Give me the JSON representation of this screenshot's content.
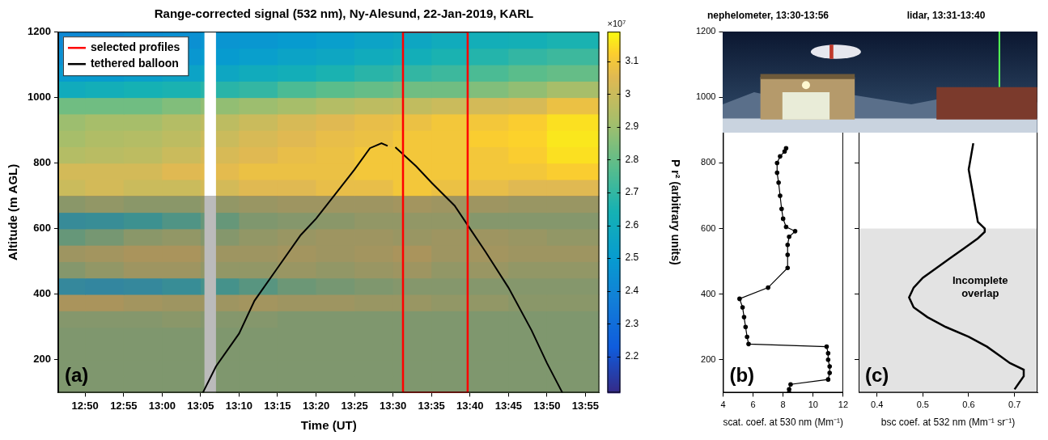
{
  "chart_data": [
    {
      "type": "heatmap",
      "title": "Range-corrected signal (532 nm), Ny-Alesund, 22-Jan-2019, KARL",
      "x_label": "Time (UT)",
      "y_label": "Altitude (m AGL)",
      "xlim": [
        766.5,
        836.8
      ],
      "xticks": [
        {
          "value": 770,
          "label": "12:50"
        },
        {
          "value": 775,
          "label": "12:55"
        },
        {
          "value": 780,
          "label": "13:00"
        },
        {
          "value": 785,
          "label": "13:05"
        },
        {
          "value": 790,
          "label": "13:10"
        },
        {
          "value": 795,
          "label": "13:15"
        },
        {
          "value": 800,
          "label": "13:20"
        },
        {
          "value": 805,
          "label": "13:25"
        },
        {
          "value": 810,
          "label": "13:30"
        },
        {
          "value": 815,
          "label": "13:35"
        },
        {
          "value": 820,
          "label": "13:40"
        },
        {
          "value": 825,
          "label": "13:45"
        },
        {
          "value": 830,
          "label": "13:50"
        },
        {
          "value": 835,
          "label": "13:55"
        }
      ],
      "ylim": [
        100,
        1200
      ],
      "yticks": [
        200,
        400,
        600,
        800,
        1000,
        1200
      ],
      "grid": false,
      "legend": "upper left",
      "panel": "(a)",
      "shaded_below": 700,
      "series": [
        {
          "name": "selected profiles",
          "type": "rectangle",
          "color": "#ff0000",
          "x": [
            811.3,
            819.7
          ]
        },
        {
          "name": "tethered balloon",
          "type": "line",
          "color": "#000000",
          "x": [
            785.3,
            787,
            790,
            792,
            795,
            798,
            800,
            802,
            805,
            807,
            808.5,
            809.3,
            809.8,
            810.3,
            813,
            815,
            818,
            820,
            822,
            825,
            828,
            830,
            832
          ],
          "values": [
            100,
            180,
            280,
            380,
            480,
            580,
            630,
            690,
            780,
            845,
            860,
            852,
            null,
            848,
            790,
            740,
            670,
            600,
            530,
            420,
            290,
            190,
            100
          ]
        }
      ],
      "heatmap": {
        "x_edges": [
          766.5,
          770,
          775,
          780,
          785,
          790,
          795,
          800,
          805,
          810,
          815,
          820,
          825,
          830,
          836.8
        ],
        "y_edges": [
          100,
          150,
          200,
          250,
          300,
          350,
          400,
          450,
          500,
          550,
          600,
          650,
          700,
          750,
          800,
          850,
          900,
          950,
          1000,
          1050,
          1100,
          1150,
          1200
        ],
        "missing": [
          785.5,
          787
        ],
        "cells": [
          [
            2.88,
            2.88,
            2.88,
            2.88,
            2.88,
            2.88,
            2.88,
            2.88,
            2.88,
            2.88,
            2.88,
            2.88,
            2.88,
            2.88
          ],
          [
            2.88,
            2.88,
            2.88,
            2.88,
            2.88,
            2.88,
            2.88,
            2.88,
            2.88,
            2.88,
            2.88,
            2.88,
            2.88,
            2.88
          ],
          [
            2.88,
            2.88,
            2.88,
            2.88,
            2.88,
            2.88,
            2.88,
            2.88,
            2.88,
            2.88,
            2.88,
            2.88,
            2.88,
            2.88
          ],
          [
            2.88,
            2.88,
            2.88,
            2.88,
            2.88,
            2.88,
            2.88,
            2.88,
            2.88,
            2.88,
            2.88,
            2.88,
            2.88,
            2.88
          ],
          [
            2.9,
            2.9,
            2.9,
            2.92,
            2.9,
            2.9,
            2.88,
            2.88,
            2.88,
            2.88,
            2.88,
            2.88,
            2.88,
            2.88
          ],
          [
            3.05,
            3.05,
            3.02,
            3.0,
            3.0,
            3.02,
            3.0,
            3.0,
            2.98,
            2.98,
            2.95,
            2.95,
            2.92,
            2.92
          ],
          [
            2.55,
            2.52,
            2.55,
            2.6,
            2.68,
            2.75,
            2.82,
            2.85,
            2.88,
            2.9,
            2.9,
            2.9,
            2.9,
            2.9
          ],
          [
            2.9,
            2.95,
            3.0,
            3.0,
            2.95,
            2.95,
            2.98,
            2.95,
            2.98,
            3.0,
            2.95,
            2.98,
            2.95,
            2.95
          ],
          [
            3.0,
            3.02,
            3.05,
            3.05,
            3.0,
            3.0,
            3.02,
            3.0,
            3.02,
            3.05,
            3.0,
            3.02,
            3.0,
            3.0
          ],
          [
            2.8,
            2.85,
            2.92,
            2.95,
            2.9,
            2.95,
            2.98,
            3.0,
            3.0,
            2.98,
            3.0,
            3.0,
            2.98,
            2.95
          ],
          [
            2.58,
            2.6,
            2.65,
            2.72,
            2.8,
            2.88,
            2.9,
            2.92,
            2.95,
            2.95,
            2.95,
            2.9,
            2.9,
            2.9
          ],
          [
            2.92,
            2.95,
            2.92,
            2.92,
            2.95,
            2.98,
            3.0,
            3.0,
            3.0,
            3.02,
            3.0,
            3.0,
            2.98,
            2.98
          ],
          [
            3.0,
            3.02,
            3.0,
            3.0,
            3.02,
            3.05,
            3.05,
            3.07,
            3.07,
            3.1,
            3.08,
            3.07,
            3.05,
            3.05
          ],
          [
            3.02,
            3.02,
            3.02,
            3.05,
            3.06,
            3.08,
            3.08,
            3.08,
            3.1,
            3.1,
            3.1,
            3.1,
            3.1,
            3.12
          ],
          [
            2.95,
            2.96,
            2.97,
            3.0,
            3.03,
            3.05,
            3.07,
            3.08,
            3.1,
            3.1,
            3.1,
            3.1,
            3.12,
            3.15
          ],
          [
            2.92,
            2.94,
            2.95,
            2.97,
            3.0,
            3.03,
            3.05,
            3.07,
            3.08,
            3.1,
            3.1,
            3.12,
            3.13,
            3.16
          ],
          [
            2.9,
            2.92,
            2.92,
            2.95,
            2.97,
            3.0,
            3.03,
            3.05,
            3.07,
            3.08,
            3.1,
            3.1,
            3.12,
            3.15
          ],
          [
            2.82,
            2.82,
            2.82,
            2.85,
            2.88,
            2.9,
            2.92,
            2.95,
            2.97,
            2.98,
            3.0,
            3.02,
            3.03,
            3.08
          ],
          [
            2.6,
            2.62,
            2.64,
            2.65,
            2.68,
            2.7,
            2.75,
            2.78,
            2.8,
            2.82,
            2.82,
            2.85,
            2.88,
            2.92
          ],
          [
            2.5,
            2.5,
            2.52,
            2.55,
            2.57,
            2.6,
            2.62,
            2.65,
            2.68,
            2.7,
            2.72,
            2.75,
            2.78,
            2.8
          ],
          [
            2.45,
            2.45,
            2.47,
            2.48,
            2.5,
            2.52,
            2.55,
            2.57,
            2.6,
            2.62,
            2.65,
            2.67,
            2.7,
            2.72
          ],
          [
            2.42,
            2.42,
            2.44,
            2.45,
            2.47,
            2.48,
            2.5,
            2.52,
            2.55,
            2.57,
            2.6,
            2.62,
            2.63,
            2.65
          ]
        ]
      },
      "colorbar": {
        "label": "P r² (arbitrary units)",
        "exponent": "×10⁷",
        "range": [
          2.09,
          3.19
        ],
        "ticks": [
          2.2,
          2.3,
          2.4,
          2.5,
          2.6,
          2.7,
          2.8,
          2.9,
          3,
          3.1
        ]
      }
    },
    {
      "type": "line",
      "title": "nephelometer, 13:30-13:56",
      "x_label": "scat. coef. at 530 nm (Mm⁻¹)",
      "xlim": [
        4,
        12
      ],
      "xticks": [
        4,
        6,
        8,
        10,
        12
      ],
      "ylim": [
        100,
        1200
      ],
      "yticks": [
        200,
        400,
        600,
        800,
        1000,
        1200
      ],
      "grid": false,
      "panel": "(b)",
      "color": "#000000",
      "marker": "circle",
      "x": [
        8.4,
        8.4,
        8.5,
        11.0,
        11.1,
        11.1,
        11.0,
        11.0,
        10.9,
        5.7,
        5.6,
        5.5,
        5.4,
        5.3,
        5.1,
        7.0,
        8.3,
        8.3,
        8.3,
        8.4,
        8.8,
        8.2,
        8.0,
        7.9,
        7.8,
        7.7,
        7.6,
        7.6,
        7.8,
        8.1,
        8.2
      ],
      "y": [
        100,
        110,
        125,
        140,
        160,
        180,
        200,
        220,
        240,
        248,
        270,
        300,
        330,
        360,
        386,
        420,
        480,
        520,
        550,
        575,
        592,
        605,
        630,
        660,
        700,
        740,
        770,
        800,
        820,
        835,
        845
      ]
    },
    {
      "type": "line",
      "title": "lidar, 13:31-13:40",
      "x_label": "bsc coef. at 532 nm (Mm⁻¹ sr⁻¹)",
      "xlim": [
        0.36,
        0.75
      ],
      "xticks": [
        0.4,
        0.5,
        0.6,
        0.7
      ],
      "ylim": [
        100,
        1200
      ],
      "yticks": [
        200,
        400,
        600,
        800,
        1000,
        1200
      ],
      "tick_labels": "x",
      "grid": false,
      "panel": "(c)",
      "color": "#000000",
      "shaded_below": 600,
      "annotation": "Incomplete overlap",
      "x": [
        0.7,
        0.71,
        0.72,
        0.72,
        0.69,
        0.67,
        0.64,
        0.6,
        0.55,
        0.51,
        0.48,
        0.47,
        0.48,
        0.5,
        0.53,
        0.56,
        0.59,
        0.62,
        0.635,
        0.635,
        0.62,
        0.615,
        0.61,
        0.605,
        0.6,
        0.605,
        0.61
      ],
      "y": [
        110,
        130,
        150,
        170,
        190,
        210,
        240,
        270,
        300,
        330,
        360,
        390,
        420,
        450,
        480,
        510,
        540,
        570,
        590,
        600,
        620,
        660,
        700,
        740,
        780,
        820,
        860
      ]
    }
  ]
}
